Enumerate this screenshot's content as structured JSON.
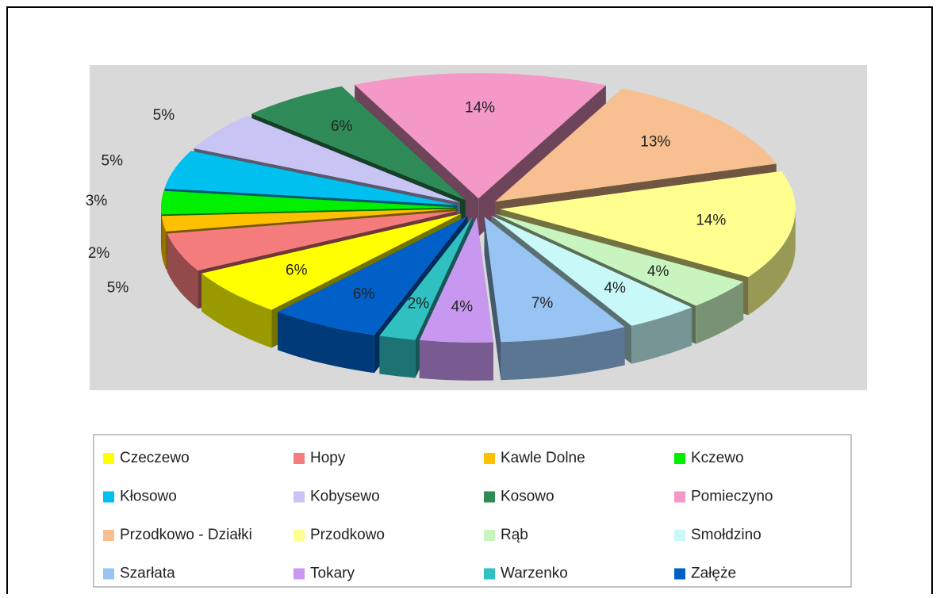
{
  "chart_data": {
    "type": "pie",
    "categories": [
      "Czeczewo",
      "Hopy",
      "Kawle Dolne",
      "Kczewo",
      "Kłosowo",
      "Kobysewo",
      "Kosowo",
      "Pomieczyno",
      "Przodkowo - Działki",
      "Przodkowo",
      "Rąb",
      "Smołdzino",
      "Szarłata",
      "Tokary",
      "Warzenko",
      "Załęże"
    ],
    "values": [
      6,
      5,
      2,
      3,
      5,
      5,
      6,
      14,
      13,
      14,
      4,
      4,
      7,
      4,
      2,
      6
    ],
    "value_labels": [
      "6%",
      "5%",
      "2%",
      "3%",
      "5%",
      "5%",
      "6%",
      "14%",
      "13%",
      "14%",
      "4%",
      "4%",
      "7%",
      "4%",
      "2%",
      "6%"
    ],
    "colors": [
      "#ffff00",
      "#f47c7c",
      "#ffc000",
      "#00f000",
      "#00c0f0",
      "#c8c4f4",
      "#2e8b57",
      "#f498c8",
      "#f8c090",
      "#ffff90",
      "#c8f4c0",
      "#c8f8f8",
      "#98c4f4",
      "#c898f0",
      "#30c0c0",
      "#0060c8"
    ],
    "legend": "bottom"
  }
}
